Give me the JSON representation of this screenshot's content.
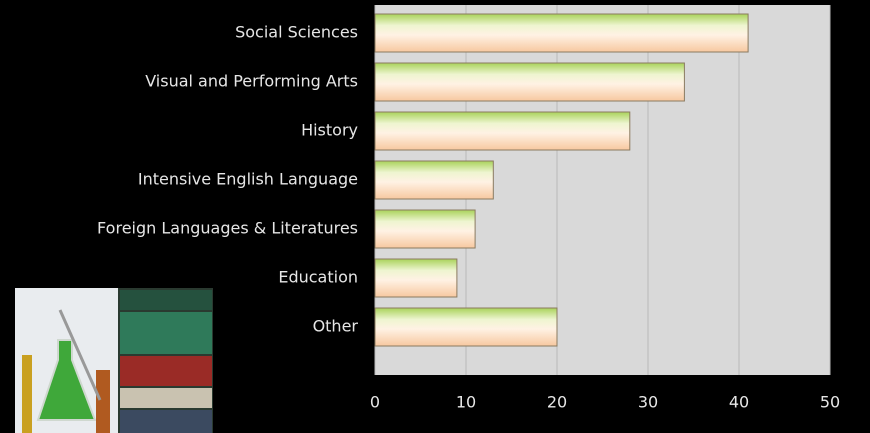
{
  "chart_data": {
    "type": "bar",
    "orientation": "horizontal",
    "categories": [
      "Social Sciences",
      "Visual and Performing Arts",
      "History",
      "Intensive English Language",
      "Foreign Languages & Literatures",
      "Education",
      "Other"
    ],
    "values": [
      41,
      34,
      28,
      13,
      11,
      9,
      20
    ],
    "color": "#f7c8a0",
    "xlim": [
      0,
      50
    ],
    "xticks": [
      0,
      10,
      20,
      30,
      40,
      50
    ],
    "grid": true
  }
}
